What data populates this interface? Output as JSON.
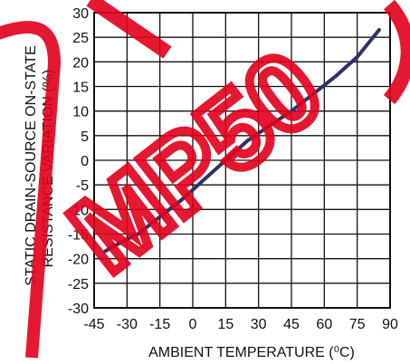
{
  "chart_data": {
    "type": "line",
    "xlabel": "AMBIENT TEMPERATURE (⁰C)",
    "ylabel_line1": "STATIC DRAIN-SOURCE ON-STATE",
    "ylabel_line2": "RESISTANCE VARIATION (%)",
    "xlim": [
      -45,
      90
    ],
    "ylim": [
      -30,
      30
    ],
    "x_ticks": [
      -45,
      -30,
      -15,
      0,
      15,
      30,
      45,
      60,
      75,
      90
    ],
    "x_tick_labels": [
      "-45",
      "-30",
      "-15",
      "0",
      "15",
      "30",
      "45",
      "60",
      "75",
      "90"
    ],
    "y_ticks": [
      30,
      25,
      20,
      15,
      10,
      5,
      0,
      -5,
      -10,
      -15,
      -20,
      -25,
      -30
    ],
    "y_tick_labels": [
      "30",
      "25",
      "20",
      "15",
      "10",
      "5",
      "0",
      "-5",
      "-10",
      "-15",
      "-20",
      "-25",
      "-30"
    ],
    "grid": true,
    "series": [
      {
        "x": [
          -40,
          -32,
          -25,
          -15,
          -5,
          5,
          15,
          25,
          35,
          45,
          55,
          65,
          75,
          85
        ],
        "y": [
          -18.5,
          -16.5,
          -15,
          -11.5,
          -8,
          -4,
          0,
          4,
          7,
          10,
          13.5,
          17,
          21,
          26.5
        ],
        "color": "#2e3168"
      }
    ],
    "colors": {
      "grid": "#111111",
      "line": "#2e3168",
      "watermark": "#e3001b"
    }
  },
  "watermark": {
    "text": "MP50"
  }
}
